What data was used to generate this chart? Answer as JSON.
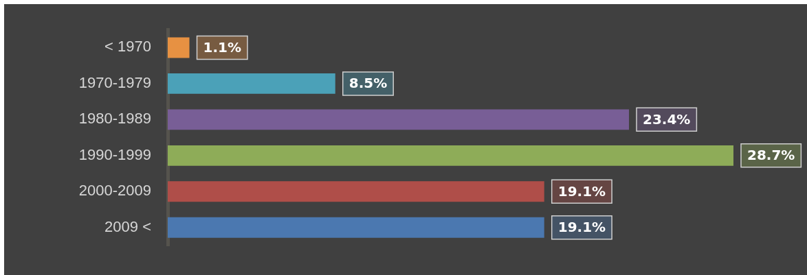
{
  "chart_data": {
    "type": "bar",
    "orientation": "horizontal",
    "categories": [
      "< 1970",
      "1970-1979",
      "1980-1989",
      "1990-1999",
      "2000-2009",
      "2009 <"
    ],
    "values": [
      1.1,
      8.5,
      23.4,
      28.7,
      19.1,
      19.1
    ],
    "colors": [
      "#e79142",
      "#4ba1b8",
      "#785e96",
      "#8eac58",
      "#af4e49",
      "#4b78b0"
    ],
    "value_labels": [
      "1.1%",
      "8.5%",
      "23.4%",
      "28.7%",
      "19.1%",
      "19.1%"
    ]
  }
}
